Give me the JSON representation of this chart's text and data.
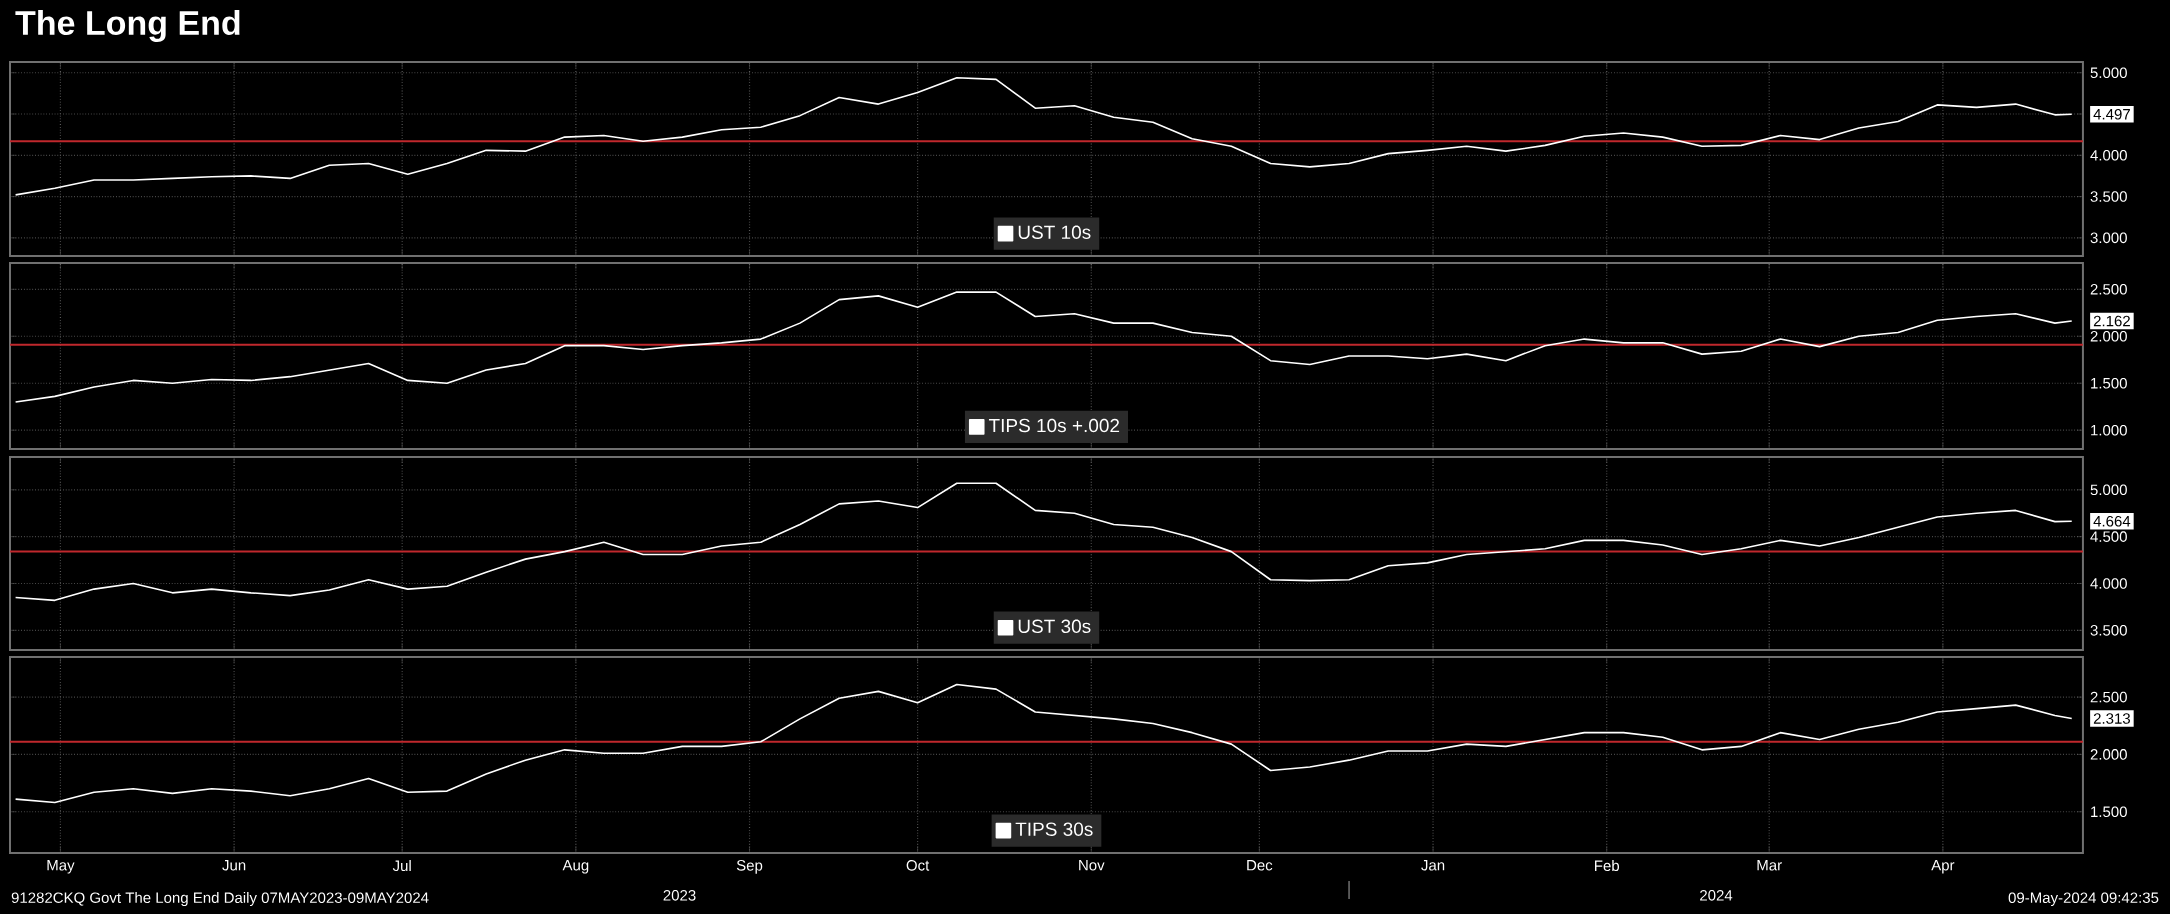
{
  "chart_data": [
    {
      "type": "line",
      "title": "The Long End",
      "xlim": [
        "2023-05-07",
        "2024-05-11"
      ],
      "ylim": [
        2.78,
        5.13
      ],
      "xticks": [
        {
          "value": "2023-05-16",
          "label": null
        },
        {
          "value": "2023-06-16",
          "label": null
        },
        {
          "value": "2023-07-16",
          "label": null
        },
        {
          "value": "2023-08-16",
          "label": null
        },
        {
          "value": "2023-09-16",
          "label": null
        },
        {
          "value": "2023-10-16",
          "label": null
        },
        {
          "value": "2023-11-16",
          "label": null
        },
        {
          "value": "2023-12-16",
          "label": null
        },
        {
          "value": "2024-01-16",
          "label": null
        },
        {
          "value": "2024-02-16",
          "label": null
        },
        {
          "value": "2024-03-16",
          "label": null
        },
        {
          "value": "2024-04-16",
          "label": null
        }
      ],
      "yticks": [
        {
          "value": 3,
          "label": "3.000"
        },
        {
          "value": 3.5,
          "label": "3.500"
        },
        {
          "value": 4,
          "label": "4.000"
        },
        {
          "value": 4.5,
          "label": null
        },
        {
          "value": 5,
          "label": "5.000"
        }
      ],
      "tick_labels": "y",
      "grid": true,
      "legend": "bottom",
      "marker": "none",
      "line_style": "solid",
      "x": [
        "2023-05-08",
        "2023-05-15",
        "2023-05-22",
        "2023-05-29",
        "2023-06-05",
        "2023-06-12",
        "2023-06-19",
        "2023-06-26",
        "2023-07-03",
        "2023-07-10",
        "2023-07-17",
        "2023-07-24",
        "2023-07-31",
        "2023-08-07",
        "2023-08-14",
        "2023-08-21",
        "2023-08-28",
        "2023-09-04",
        "2023-09-11",
        "2023-09-18",
        "2023-09-25",
        "2023-10-02",
        "2023-10-09",
        "2023-10-16",
        "2023-10-23",
        "2023-10-30",
        "2023-11-06",
        "2023-11-13",
        "2023-11-20",
        "2023-11-27",
        "2023-12-04",
        "2023-12-11",
        "2023-12-18",
        "2023-12-25",
        "2024-01-01",
        "2024-01-08",
        "2024-01-15",
        "2024-01-22",
        "2024-01-29",
        "2024-02-05",
        "2024-02-12",
        "2024-02-19",
        "2024-02-26",
        "2024-03-04",
        "2024-03-11",
        "2024-03-18",
        "2024-03-25",
        "2024-04-01",
        "2024-04-08",
        "2024-04-15",
        "2024-04-22",
        "2024-04-29",
        "2024-05-06",
        "2024-05-09"
      ],
      "series": [
        {
          "name": "UST 10s",
          "color": "#ffffff",
          "values": [
            3.52,
            3.6,
            3.7,
            3.7,
            3.72,
            3.74,
            3.75,
            3.72,
            3.88,
            3.9,
            3.77,
            3.9,
            4.06,
            4.05,
            4.22,
            4.24,
            4.17,
            4.22,
            4.31,
            4.34,
            4.48,
            4.7,
            4.62,
            4.76,
            4.94,
            4.92,
            4.57,
            4.6,
            4.46,
            4.4,
            4.2,
            4.11,
            3.9,
            3.86,
            3.9,
            4.02,
            4.06,
            4.11,
            4.05,
            4.12,
            4.23,
            4.27,
            4.22,
            4.11,
            4.12,
            4.24,
            4.19,
            4.33,
            4.41,
            4.61,
            4.58,
            4.62,
            4.49,
            4.497
          ]
        }
      ],
      "ref_lines": [
        {
          "axis": "y",
          "value": 4.17,
          "color": "#c0282d"
        }
      ],
      "annotations": [
        {
          "text": "4.497",
          "x": "2024-05-09",
          "y": 4.497
        }
      ]
    },
    {
      "type": "line",
      "xlim": [
        "2023-05-07",
        "2024-05-11"
      ],
      "ylim": [
        0.8,
        2.78
      ],
      "xticks": [
        {
          "value": "2023-05-16",
          "label": null
        },
        {
          "value": "2023-06-16",
          "label": null
        },
        {
          "value": "2023-07-16",
          "label": null
        },
        {
          "value": "2023-08-16",
          "label": null
        },
        {
          "value": "2023-09-16",
          "label": null
        },
        {
          "value": "2023-10-16",
          "label": null
        },
        {
          "value": "2023-11-16",
          "label": null
        },
        {
          "value": "2023-12-16",
          "label": null
        },
        {
          "value": "2024-01-16",
          "label": null
        },
        {
          "value": "2024-02-16",
          "label": null
        },
        {
          "value": "2024-03-16",
          "label": null
        },
        {
          "value": "2024-04-16",
          "label": null
        }
      ],
      "yticks": [
        {
          "value": 1,
          "label": "1.000"
        },
        {
          "value": 1.5,
          "label": "1.500"
        },
        {
          "value": 2,
          "label": "2.000"
        },
        {
          "value": 2.5,
          "label": "2.500"
        }
      ],
      "tick_labels": "y",
      "grid": true,
      "legend": "bottom",
      "marker": "none",
      "line_style": "solid",
      "x": [
        "2023-05-08",
        "2023-05-15",
        "2023-05-22",
        "2023-05-29",
        "2023-06-05",
        "2023-06-12",
        "2023-06-19",
        "2023-06-26",
        "2023-07-03",
        "2023-07-10",
        "2023-07-17",
        "2023-07-24",
        "2023-07-31",
        "2023-08-07",
        "2023-08-14",
        "2023-08-21",
        "2023-08-28",
        "2023-09-04",
        "2023-09-11",
        "2023-09-18",
        "2023-09-25",
        "2023-10-02",
        "2023-10-09",
        "2023-10-16",
        "2023-10-23",
        "2023-10-30",
        "2023-11-06",
        "2023-11-13",
        "2023-11-20",
        "2023-11-27",
        "2023-12-04",
        "2023-12-11",
        "2023-12-18",
        "2023-12-25",
        "2024-01-01",
        "2024-01-08",
        "2024-01-15",
        "2024-01-22",
        "2024-01-29",
        "2024-02-05",
        "2024-02-12",
        "2024-02-19",
        "2024-02-26",
        "2024-03-04",
        "2024-03-11",
        "2024-03-18",
        "2024-03-25",
        "2024-04-01",
        "2024-04-08",
        "2024-04-15",
        "2024-04-22",
        "2024-04-29",
        "2024-05-06",
        "2024-05-09"
      ],
      "series": [
        {
          "name": "TIPS 10s +.002",
          "color": "#ffffff",
          "values": [
            1.3,
            1.36,
            1.46,
            1.53,
            1.5,
            1.54,
            1.53,
            1.57,
            1.64,
            1.71,
            1.53,
            1.5,
            1.64,
            1.71,
            1.9,
            1.9,
            1.86,
            1.9,
            1.93,
            1.97,
            2.14,
            2.39,
            2.43,
            2.31,
            2.47,
            2.47,
            2.21,
            2.24,
            2.14,
            2.14,
            2.04,
            2.0,
            1.74,
            1.7,
            1.79,
            1.79,
            1.76,
            1.81,
            1.74,
            1.9,
            1.97,
            1.93,
            1.93,
            1.81,
            1.84,
            1.97,
            1.89,
            2.0,
            2.04,
            2.17,
            2.21,
            2.24,
            2.14,
            2.162
          ]
        }
      ],
      "ref_lines": [
        {
          "axis": "y",
          "value": 1.91,
          "color": "#c0282d"
        }
      ],
      "annotations": [
        {
          "text": "2.162",
          "x": "2024-05-09",
          "y": 2.162
        }
      ]
    },
    {
      "type": "line",
      "xlim": [
        "2023-05-07",
        "2024-05-11"
      ],
      "ylim": [
        3.29,
        5.35
      ],
      "xticks": [
        {
          "value": "2023-05-16",
          "label": null
        },
        {
          "value": "2023-06-16",
          "label": null
        },
        {
          "value": "2023-07-16",
          "label": null
        },
        {
          "value": "2023-08-16",
          "label": null
        },
        {
          "value": "2023-09-16",
          "label": null
        },
        {
          "value": "2023-10-16",
          "label": null
        },
        {
          "value": "2023-11-16",
          "label": null
        },
        {
          "value": "2023-12-16",
          "label": null
        },
        {
          "value": "2024-01-16",
          "label": null
        },
        {
          "value": "2024-02-16",
          "label": null
        },
        {
          "value": "2024-03-16",
          "label": null
        },
        {
          "value": "2024-04-16",
          "label": null
        }
      ],
      "yticks": [
        {
          "value": 3.5,
          "label": "3.500"
        },
        {
          "value": 4,
          "label": "4.000"
        },
        {
          "value": 4.5,
          "label": "4.500"
        },
        {
          "value": 5,
          "label": "5.000"
        }
      ],
      "tick_labels": "y",
      "grid": true,
      "legend": "bottom",
      "marker": "none",
      "line_style": "solid",
      "x": [
        "2023-05-08",
        "2023-05-15",
        "2023-05-22",
        "2023-05-29",
        "2023-06-05",
        "2023-06-12",
        "2023-06-19",
        "2023-06-26",
        "2023-07-03",
        "2023-07-10",
        "2023-07-17",
        "2023-07-24",
        "2023-07-31",
        "2023-08-07",
        "2023-08-14",
        "2023-08-21",
        "2023-08-28",
        "2023-09-04",
        "2023-09-11",
        "2023-09-18",
        "2023-09-25",
        "2023-10-02",
        "2023-10-09",
        "2023-10-16",
        "2023-10-23",
        "2023-10-30",
        "2023-11-06",
        "2023-11-13",
        "2023-11-20",
        "2023-11-27",
        "2023-12-04",
        "2023-12-11",
        "2023-12-18",
        "2023-12-25",
        "2024-01-01",
        "2024-01-08",
        "2024-01-15",
        "2024-01-22",
        "2024-01-29",
        "2024-02-05",
        "2024-02-12",
        "2024-02-19",
        "2024-02-26",
        "2024-03-04",
        "2024-03-11",
        "2024-03-18",
        "2024-03-25",
        "2024-04-01",
        "2024-04-08",
        "2024-04-15",
        "2024-04-22",
        "2024-04-29",
        "2024-05-06",
        "2024-05-09"
      ],
      "series": [
        {
          "name": "UST 30s",
          "color": "#ffffff",
          "values": [
            3.85,
            3.82,
            3.94,
            4.0,
            3.9,
            3.94,
            3.9,
            3.87,
            3.93,
            4.04,
            3.94,
            3.97,
            4.12,
            4.26,
            4.34,
            4.44,
            4.31,
            4.31,
            4.4,
            4.44,
            4.63,
            4.85,
            4.88,
            4.81,
            5.07,
            5.07,
            4.78,
            4.75,
            4.63,
            4.6,
            4.49,
            4.34,
            4.04,
            4.03,
            4.04,
            4.19,
            4.22,
            4.31,
            4.34,
            4.37,
            4.46,
            4.46,
            4.41,
            4.31,
            4.37,
            4.46,
            4.4,
            4.49,
            4.6,
            4.71,
            4.75,
            4.78,
            4.66,
            4.664
          ]
        }
      ],
      "ref_lines": [
        {
          "axis": "y",
          "value": 4.34,
          "color": "#c0282d"
        }
      ],
      "annotations": [
        {
          "text": "4.664",
          "x": "2024-05-09",
          "y": 4.664
        }
      ]
    },
    {
      "type": "line",
      "xlim": [
        "2023-05-07",
        "2024-05-11"
      ],
      "ylim": [
        1.14,
        2.85
      ],
      "xticks": [
        {
          "value": "2023-05-16",
          "label": "May"
        },
        {
          "value": "2023-06-16",
          "label": "Jun"
        },
        {
          "value": "2023-07-16",
          "label": "Jul"
        },
        {
          "value": "2023-08-16",
          "label": "Aug"
        },
        {
          "value": "2023-09-16",
          "label": "Sep"
        },
        {
          "value": "2023-10-16",
          "label": "Oct"
        },
        {
          "value": "2023-11-16",
          "label": "Nov"
        },
        {
          "value": "2023-12-16",
          "label": "Dec"
        },
        {
          "value": "2024-01-16",
          "label": "Jan"
        },
        {
          "value": "2024-02-16",
          "label": "Feb"
        },
        {
          "value": "2024-03-16",
          "label": "Mar"
        },
        {
          "value": "2024-04-16",
          "label": "Apr"
        }
      ],
      "yticks": [
        {
          "value": 1.5,
          "label": "1.500"
        },
        {
          "value": 2,
          "label": "2.000"
        },
        {
          "value": 2.5,
          "label": "2.500"
        }
      ],
      "grid": true,
      "legend": "bottom",
      "marker": "none",
      "line_style": "solid",
      "x": [
        "2023-05-08",
        "2023-05-15",
        "2023-05-22",
        "2023-05-29",
        "2023-06-05",
        "2023-06-12",
        "2023-06-19",
        "2023-06-26",
        "2023-07-03",
        "2023-07-10",
        "2023-07-17",
        "2023-07-24",
        "2023-07-31",
        "2023-08-07",
        "2023-08-14",
        "2023-08-21",
        "2023-08-28",
        "2023-09-04",
        "2023-09-11",
        "2023-09-18",
        "2023-09-25",
        "2023-10-02",
        "2023-10-09",
        "2023-10-16",
        "2023-10-23",
        "2023-10-30",
        "2023-11-06",
        "2023-11-13",
        "2023-11-20",
        "2023-11-27",
        "2023-12-04",
        "2023-12-11",
        "2023-12-18",
        "2023-12-25",
        "2024-01-01",
        "2024-01-08",
        "2024-01-15",
        "2024-01-22",
        "2024-01-29",
        "2024-02-05",
        "2024-02-12",
        "2024-02-19",
        "2024-02-26",
        "2024-03-04",
        "2024-03-11",
        "2024-03-18",
        "2024-03-25",
        "2024-04-01",
        "2024-04-08",
        "2024-04-15",
        "2024-04-22",
        "2024-04-29",
        "2024-05-06",
        "2024-05-09"
      ],
      "series": [
        {
          "name": "TIPS 30s",
          "color": "#ffffff",
          "values": [
            1.61,
            1.58,
            1.67,
            1.7,
            1.66,
            1.7,
            1.68,
            1.64,
            1.7,
            1.79,
            1.67,
            1.68,
            1.83,
            1.95,
            2.04,
            2.01,
            2.01,
            2.07,
            2.07,
            2.11,
            2.31,
            2.49,
            2.55,
            2.45,
            2.61,
            2.57,
            2.37,
            2.34,
            2.31,
            2.27,
            2.19,
            2.09,
            1.86,
            1.89,
            1.95,
            2.03,
            2.03,
            2.09,
            2.07,
            2.13,
            2.19,
            2.19,
            2.15,
            2.04,
            2.07,
            2.19,
            2.13,
            2.22,
            2.28,
            2.37,
            2.4,
            2.43,
            2.34,
            2.313
          ]
        }
      ],
      "ref_lines": [
        {
          "axis": "y",
          "value": 2.11,
          "color": "#c0282d"
        }
      ],
      "annotations": [
        {
          "text": "2.313",
          "x": "2024-05-09",
          "y": 2.313
        },
        "2023",
        "2024",
        "91282CKQ Govt The Long End  Daily 07MAY2023-09MAY2024",
        "09-May-2024 09:42:35"
      ]
    }
  ]
}
